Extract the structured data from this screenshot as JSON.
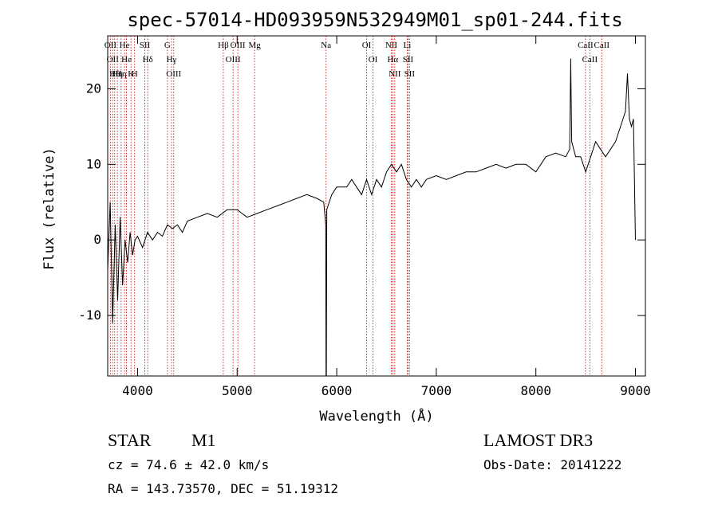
{
  "chart_data": {
    "type": "line",
    "title": "spec-57014-HD093959N532949M01_sp01-244.fits",
    "xlabel": "Wavelength (Å)",
    "ylabel": "Flux (relative)",
    "xlim": [
      3700,
      9100
    ],
    "ylim": [
      -18,
      27
    ],
    "xticks": [
      4000,
      5000,
      6000,
      7000,
      8000,
      9000
    ],
    "yticks": [
      -10,
      0,
      10,
      20
    ],
    "line_color": "#000000",
    "marker_color": "#c00000",
    "series": [
      {
        "points": [
          [
            3700,
            -4
          ],
          [
            3725,
            5
          ],
          [
            3750,
            -11
          ],
          [
            3775,
            2
          ],
          [
            3800,
            -8
          ],
          [
            3825,
            3
          ],
          [
            3850,
            -6
          ],
          [
            3875,
            0
          ],
          [
            3900,
            -3
          ],
          [
            3925,
            1
          ],
          [
            3950,
            -2
          ],
          [
            3975,
            0
          ],
          [
            4000,
            0.5
          ],
          [
            4050,
            -1
          ],
          [
            4100,
            1
          ],
          [
            4150,
            0
          ],
          [
            4200,
            1
          ],
          [
            4250,
            0.5
          ],
          [
            4300,
            2
          ],
          [
            4350,
            1.5
          ],
          [
            4400,
            2
          ],
          [
            4450,
            1
          ],
          [
            4500,
            2.5
          ],
          [
            4600,
            3
          ],
          [
            4700,
            3.5
          ],
          [
            4800,
            3
          ],
          [
            4900,
            4
          ],
          [
            5000,
            4
          ],
          [
            5050,
            3.5
          ],
          [
            5100,
            3
          ],
          [
            5200,
            3.5
          ],
          [
            5300,
            4
          ],
          [
            5400,
            4.5
          ],
          [
            5500,
            5
          ],
          [
            5600,
            5.5
          ],
          [
            5700,
            6
          ],
          [
            5800,
            5.5
          ],
          [
            5870,
            5
          ],
          [
            5890,
            2
          ],
          [
            5893,
            -18
          ],
          [
            5896,
            -18
          ],
          [
            5900,
            4
          ],
          [
            5950,
            6
          ],
          [
            6000,
            7
          ],
          [
            6100,
            7
          ],
          [
            6150,
            8
          ],
          [
            6200,
            7
          ],
          [
            6250,
            6
          ],
          [
            6300,
            8
          ],
          [
            6350,
            6
          ],
          [
            6400,
            8
          ],
          [
            6450,
            7
          ],
          [
            6500,
            9
          ],
          [
            6550,
            10
          ],
          [
            6600,
            9
          ],
          [
            6650,
            10
          ],
          [
            6700,
            8
          ],
          [
            6750,
            7
          ],
          [
            6800,
            8
          ],
          [
            6850,
            7
          ],
          [
            6900,
            8
          ],
          [
            7000,
            8.5
          ],
          [
            7100,
            8
          ],
          [
            7200,
            8.5
          ],
          [
            7300,
            9
          ],
          [
            7400,
            9
          ],
          [
            7500,
            9.5
          ],
          [
            7600,
            10
          ],
          [
            7700,
            9.5
          ],
          [
            7800,
            10
          ],
          [
            7900,
            10
          ],
          [
            8000,
            9
          ],
          [
            8100,
            11
          ],
          [
            8200,
            11.5
          ],
          [
            8300,
            11
          ],
          [
            8340,
            12
          ],
          [
            8350,
            24
          ],
          [
            8360,
            13
          ],
          [
            8400,
            11
          ],
          [
            8450,
            11
          ],
          [
            8500,
            9
          ],
          [
            8550,
            11
          ],
          [
            8600,
            13
          ],
          [
            8650,
            12
          ],
          [
            8700,
            11
          ],
          [
            8750,
            12
          ],
          [
            8800,
            13
          ],
          [
            8850,
            15
          ],
          [
            8900,
            17
          ],
          [
            8920,
            22
          ],
          [
            8940,
            16
          ],
          [
            8960,
            15
          ],
          [
            8980,
            16
          ],
          [
            9000,
            0
          ]
        ]
      }
    ],
    "lines": [
      {
        "wavelength": 3727,
        "label": "OII"
      },
      {
        "wavelength": 3750,
        "label": "OII"
      },
      {
        "wavelength": 3770,
        "label": "Hθ"
      },
      {
        "wavelength": 3797,
        "label": "Hη"
      },
      {
        "wavelength": 3835,
        "label": "Hη"
      },
      {
        "wavelength": 3869,
        "label": "He"
      },
      {
        "wavelength": 3889,
        "label": "He"
      },
      {
        "wavelength": 3934,
        "label": "K"
      },
      {
        "wavelength": 3970,
        "label": "H"
      },
      {
        "wavelength": 4072,
        "label": "SII"
      },
      {
        "wavelength": 4102,
        "label": "Hδ"
      },
      {
        "wavelength": 4300,
        "label": "G"
      },
      {
        "wavelength": 4341,
        "label": "Hγ"
      },
      {
        "wavelength": 4363,
        "label": "OIII"
      },
      {
        "wavelength": 4861,
        "label": "Hβ"
      },
      {
        "wavelength": 4959,
        "label": "OIII"
      },
      {
        "wavelength": 5007,
        "label": "OIII"
      },
      {
        "wavelength": 5175,
        "label": "Mg"
      },
      {
        "wavelength": 5893,
        "label": "Na"
      },
      {
        "wavelength": 6300,
        "label": "OI"
      },
      {
        "wavelength": 6364,
        "label": "OI"
      },
      {
        "wavelength": 6548,
        "label": "NII"
      },
      {
        "wavelength": 6563,
        "label": "Hα"
      },
      {
        "wavelength": 6583,
        "label": "NII"
      },
      {
        "wavelength": 6708,
        "label": "Li"
      },
      {
        "wavelength": 6716,
        "label": "SII"
      },
      {
        "wavelength": 6731,
        "label": "SII"
      },
      {
        "wavelength": 8498,
        "label": "CaII"
      },
      {
        "wavelength": 8542,
        "label": "CaII"
      },
      {
        "wavelength": 8662,
        "label": "CaII"
      }
    ]
  },
  "info": {
    "object_type": "STAR",
    "subclass": "M1",
    "survey": "LAMOST DR3",
    "cz": "cz = 74.6 ± 42.0 km/s",
    "obs_date": "Obs-Date: 20141222",
    "radec": "RA = 143.73570, DEC =  51.19312"
  }
}
